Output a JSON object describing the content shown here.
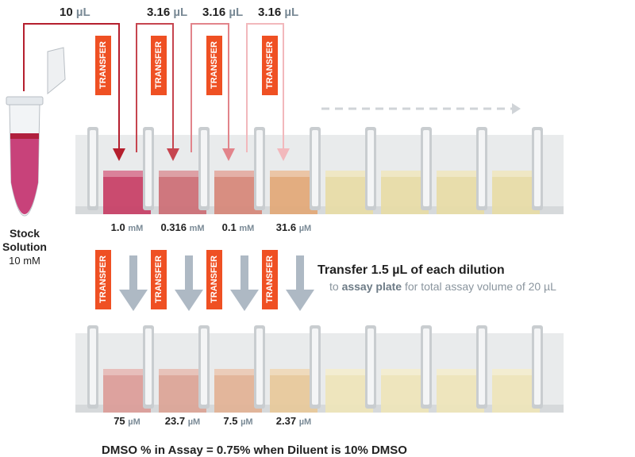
{
  "stock": {
    "title": [
      "Stock",
      "Solution"
    ],
    "concentration": "10 mM"
  },
  "top_volumes": [
    {
      "amount": "10",
      "unit": "µL"
    },
    {
      "amount": "3.16",
      "unit": "µL"
    },
    {
      "amount": "3.16",
      "unit": "µL"
    },
    {
      "amount": "3.16",
      "unit": "µL"
    }
  ],
  "transfer_labels_top": [
    "TRANSFER",
    "TRANSFER",
    "TRANSFER",
    "TRANSFER"
  ],
  "dilution_concentrations": [
    {
      "value": "1.0",
      "unit": "mM"
    },
    {
      "value": "0.316",
      "unit": "mM"
    },
    {
      "value": "0.1",
      "unit": "mM"
    },
    {
      "value": "31.6",
      "unit": "µM"
    }
  ],
  "instruction": {
    "line1": "Transfer 1.5 µL of each dilution",
    "line2_pre": "to ",
    "line2_bold": "assay plate",
    "line2_post": " for total assay volume of 20 µL"
  },
  "transfer_labels_middle": [
    "TRANSFER",
    "TRANSFER",
    "TRANSFER",
    "TRANSFER"
  ],
  "assay_concentrations": [
    {
      "value": "75",
      "unit": "µM"
    },
    {
      "value": "23.7",
      "unit": "µM"
    },
    {
      "value": "7.5",
      "unit": "µM"
    },
    {
      "value": "2.37",
      "unit": "µM"
    }
  ],
  "footer": "DMSO % in Assay = 0.75% when Diluent is 10% DMSO"
}
